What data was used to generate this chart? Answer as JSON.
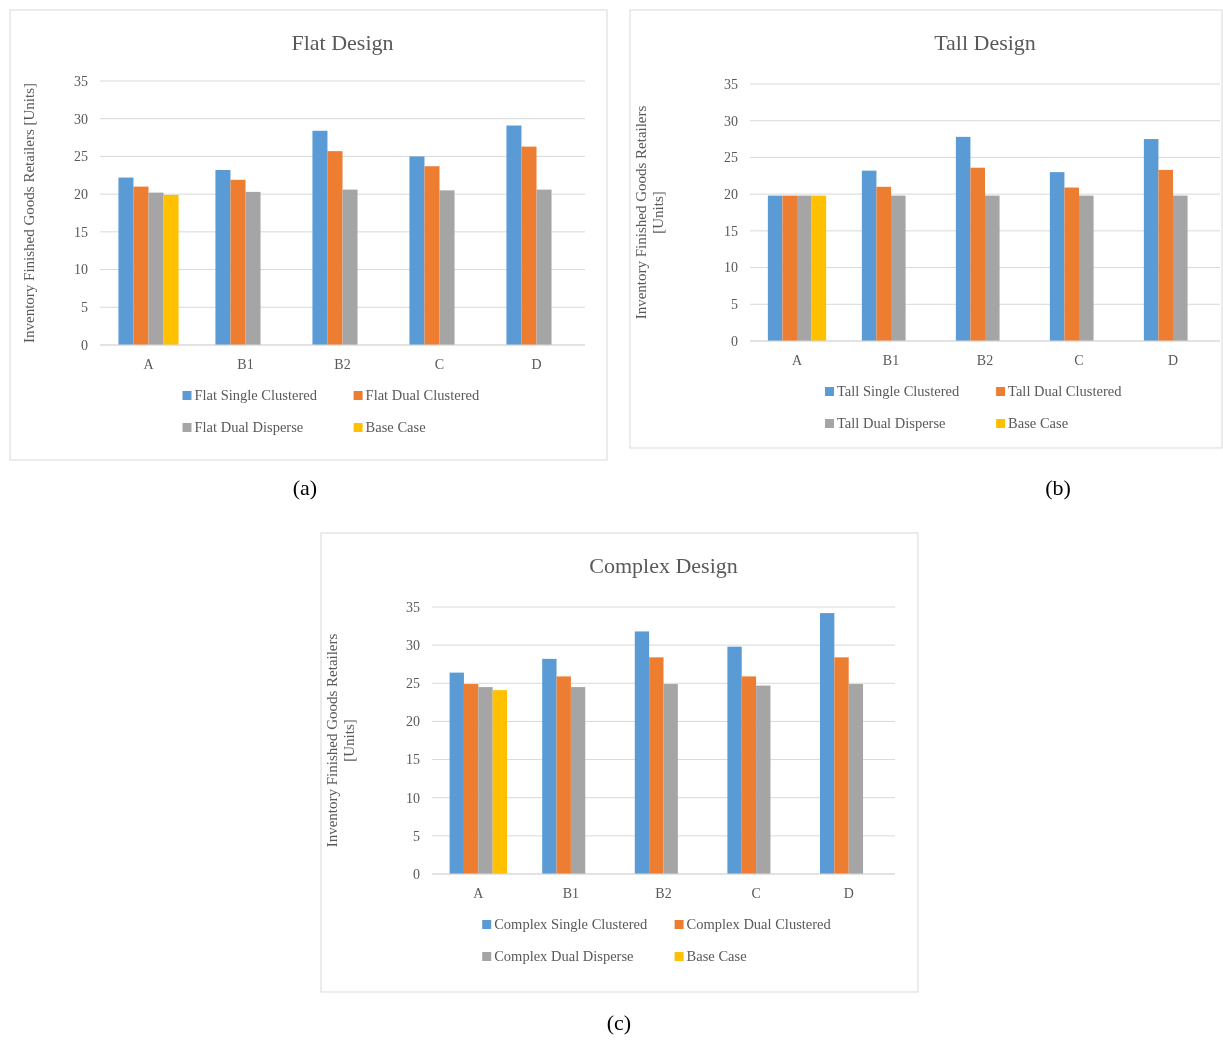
{
  "chart_data": [
    {
      "type": "bar",
      "title": "Flat Design",
      "ylabel": "Inventory Finished Goods Retailers [Units]",
      "categories": [
        "A",
        "B1",
        "B2",
        "C",
        "D"
      ],
      "series": [
        {
          "name": "Flat Single Clustered",
          "color": "#5b9bd5",
          "values": [
            22.2,
            23.2,
            28.4,
            25.0,
            29.1
          ]
        },
        {
          "name": "Flat Dual Clustered",
          "color": "#ed7d31",
          "values": [
            21.0,
            21.9,
            25.7,
            23.7,
            26.3
          ]
        },
        {
          "name": "Flat Dual Disperse",
          "color": "#a5a5a5",
          "values": [
            20.2,
            20.3,
            20.6,
            20.5,
            20.6
          ]
        },
        {
          "name": "Base Case",
          "color": "#ffc000",
          "values": [
            19.9,
            null,
            null,
            null,
            null
          ]
        }
      ],
      "ylim": [
        0,
        35
      ],
      "yticks": [
        0,
        5,
        10,
        15,
        20,
        25,
        30,
        35
      ],
      "grid": "y",
      "legend": "bottom",
      "annotations": [
        "(a)"
      ]
    },
    {
      "type": "bar",
      "title": "Tall Design",
      "ylabel": "Inventory Finished Goods Retailers [Units]",
      "categories": [
        "A",
        "B1",
        "B2",
        "C",
        "D"
      ],
      "series": [
        {
          "name": "Tall Single Clustered",
          "color": "#5b9bd5",
          "values": [
            19.8,
            23.2,
            27.8,
            23.0,
            27.5
          ]
        },
        {
          "name": "Tall Dual Clustered",
          "color": "#ed7d31",
          "values": [
            19.8,
            21.0,
            23.6,
            20.9,
            23.3
          ]
        },
        {
          "name": "Tall Dual Disperse",
          "color": "#a5a5a5",
          "values": [
            19.8,
            19.8,
            19.8,
            19.8,
            19.8
          ]
        },
        {
          "name": "Base Case",
          "color": "#ffc000",
          "values": [
            19.8,
            null,
            null,
            null,
            null
          ]
        }
      ],
      "ylim": [
        0,
        35
      ],
      "yticks": [
        0,
        5,
        10,
        15,
        20,
        25,
        30,
        35
      ],
      "grid": "y",
      "legend": "bottom",
      "annotations": [
        "(b)"
      ]
    },
    {
      "type": "bar",
      "title": "Complex Design",
      "ylabel": "Inventory Finished Goods Retailers [Units]",
      "categories": [
        "A",
        "B1",
        "B2",
        "C",
        "D"
      ],
      "series": [
        {
          "name": "Complex Single Clustered",
          "color": "#5b9bd5",
          "values": [
            26.4,
            28.2,
            31.8,
            29.8,
            34.2
          ]
        },
        {
          "name": "Complex Dual Clustered",
          "color": "#ed7d31",
          "values": [
            24.9,
            25.9,
            28.4,
            25.9,
            28.4
          ]
        },
        {
          "name": "Complex Dual Disperse",
          "color": "#a5a5a5",
          "values": [
            24.5,
            24.5,
            24.9,
            24.7,
            24.9
          ]
        },
        {
          "name": "Base Case",
          "color": "#ffc000",
          "values": [
            24.1,
            null,
            null,
            null,
            null
          ]
        }
      ],
      "ylim": [
        0,
        35
      ],
      "yticks": [
        0,
        5,
        10,
        15,
        20,
        25,
        30,
        35
      ],
      "grid": "y",
      "legend": "bottom",
      "annotations": [
        "(c)"
      ]
    }
  ]
}
